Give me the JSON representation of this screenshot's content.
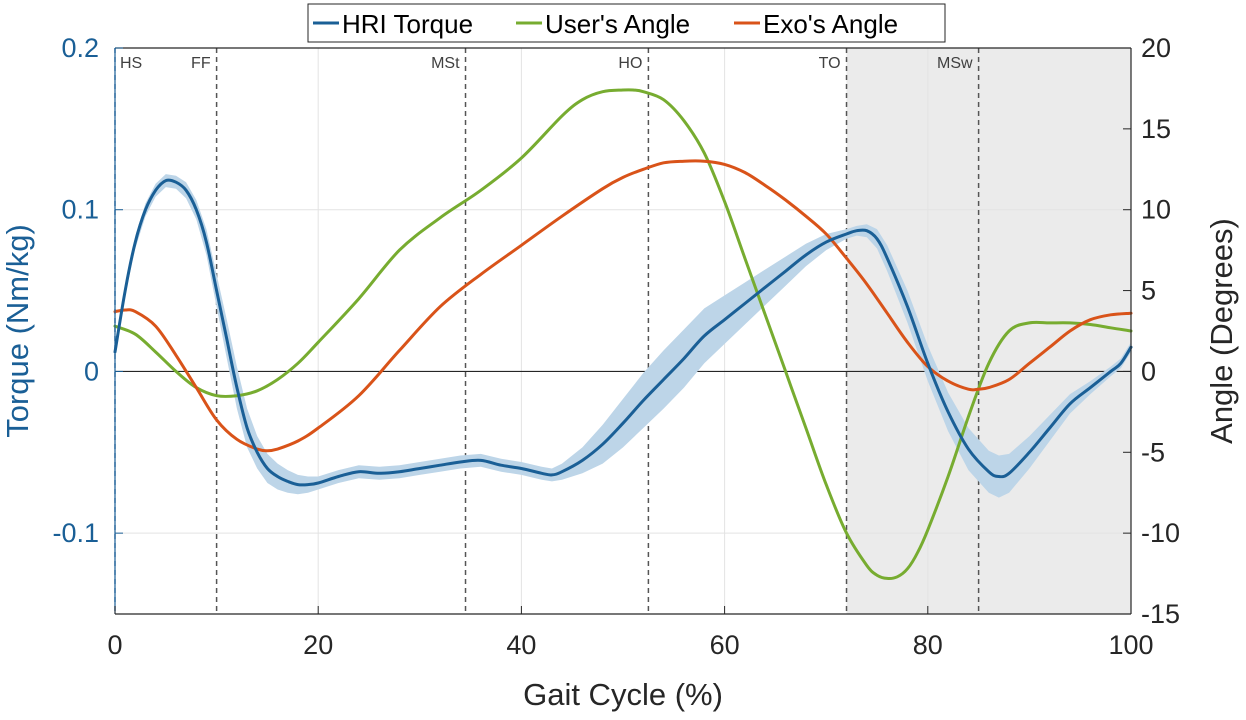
{
  "chart_data": {
    "type": "line",
    "xlabel": "Gait Cycle (%)",
    "ylabel_left": "Torque (Nm/kg)",
    "ylabel_right": "Angle (Degrees)",
    "xlim": [
      0,
      100
    ],
    "ylim_left": [
      -0.15,
      0.2
    ],
    "ylim_right": [
      -15,
      20
    ],
    "x_ticks": [
      0,
      20,
      40,
      60,
      80,
      100
    ],
    "y_ticks_left": [
      -0.1,
      0,
      0.1,
      0.2
    ],
    "y_ticks_left_labels": [
      "-0.1",
      "0",
      "0.1",
      "0.2"
    ],
    "y_ticks_right": [
      -15,
      -10,
      -5,
      0,
      5,
      10,
      15,
      20
    ],
    "grid": true,
    "legend_position": "top-center",
    "shaded_region": {
      "x": [
        72,
        100
      ],
      "color": "#ebebeb"
    },
    "phases": [
      {
        "label": "HS",
        "x": 0
      },
      {
        "label": "FF",
        "x": 10
      },
      {
        "label": "MSt",
        "x": 34.5
      },
      {
        "label": "HO",
        "x": 52.5
      },
      {
        "label": "TO",
        "x": 72
      },
      {
        "label": "MSw",
        "x": 85
      }
    ],
    "series": [
      {
        "name": "HRI Torque",
        "axis": "left",
        "color": "#1a5f96",
        "band_color": "#bdd5e8",
        "x": [
          0,
          1,
          2,
          3,
          4,
          5,
          6,
          7,
          8,
          9,
          10,
          11,
          12,
          13,
          14,
          15,
          16,
          17,
          18,
          19,
          20,
          22,
          24,
          26,
          28,
          30,
          32,
          34,
          36,
          38,
          40,
          42,
          43,
          44,
          46,
          48,
          50,
          52,
          54,
          56,
          58,
          60,
          62,
          64,
          66,
          68,
          70,
          72,
          73,
          74,
          75,
          76,
          78,
          80,
          82,
          84,
          86,
          87,
          88,
          90,
          92,
          94,
          96,
          98,
          99,
          100
        ],
        "y": [
          0.012,
          0.05,
          0.08,
          0.1,
          0.112,
          0.118,
          0.117,
          0.112,
          0.1,
          0.08,
          0.05,
          0.02,
          -0.01,
          -0.035,
          -0.05,
          -0.06,
          -0.065,
          -0.068,
          -0.07,
          -0.07,
          -0.069,
          -0.065,
          -0.062,
          -0.063,
          -0.062,
          -0.06,
          -0.058,
          -0.056,
          -0.055,
          -0.058,
          -0.06,
          -0.063,
          -0.064,
          -0.062,
          -0.055,
          -0.045,
          -0.032,
          -0.018,
          -0.005,
          0.008,
          0.022,
          0.032,
          0.042,
          0.052,
          0.062,
          0.072,
          0.08,
          0.085,
          0.087,
          0.087,
          0.082,
          0.07,
          0.04,
          0.005,
          -0.025,
          -0.048,
          -0.062,
          -0.065,
          -0.063,
          -0.05,
          -0.035,
          -0.02,
          -0.01,
          0.0,
          0.005,
          0.015
        ],
        "band": [
          0.002,
          0.003,
          0.004,
          0.004,
          0.004,
          0.004,
          0.004,
          0.005,
          0.006,
          0.008,
          0.01,
          0.012,
          0.013,
          0.012,
          0.01,
          0.009,
          0.008,
          0.007,
          0.006,
          0.005,
          0.004,
          0.004,
          0.004,
          0.004,
          0.004,
          0.004,
          0.004,
          0.004,
          0.004,
          0.004,
          0.004,
          0.004,
          0.004,
          0.005,
          0.008,
          0.012,
          0.015,
          0.017,
          0.018,
          0.018,
          0.017,
          0.015,
          0.013,
          0.011,
          0.009,
          0.007,
          0.005,
          0.003,
          0.003,
          0.004,
          0.006,
          0.008,
          0.01,
          0.011,
          0.012,
          0.013,
          0.013,
          0.013,
          0.012,
          0.01,
          0.008,
          0.006,
          0.004,
          0.003,
          0.003,
          0.003
        ]
      },
      {
        "name": "User's Angle",
        "axis": "right",
        "color": "#77ac30",
        "x": [
          0,
          2,
          4,
          6,
          8,
          10,
          12,
          14,
          16,
          18,
          20,
          24,
          28,
          32,
          36,
          40,
          44,
          46,
          48,
          50,
          51,
          52,
          54,
          56,
          58,
          60,
          62,
          64,
          66,
          68,
          70,
          72,
          74,
          75,
          76,
          77,
          78,
          79,
          80,
          82,
          84,
          86,
          88,
          90,
          92,
          94,
          96,
          98,
          100
        ],
        "y": [
          2.8,
          2.3,
          1.2,
          0,
          -1.0,
          -1.5,
          -1.5,
          -1.2,
          -0.5,
          0.5,
          1.8,
          4.5,
          7.5,
          9.5,
          11.2,
          13.2,
          15.8,
          16.8,
          17.3,
          17.4,
          17.4,
          17.3,
          16.8,
          15.5,
          13.5,
          10.5,
          7.0,
          3.5,
          0,
          -3.5,
          -7.0,
          -10.0,
          -12.0,
          -12.6,
          -12.8,
          -12.7,
          -12.2,
          -11.2,
          -9.8,
          -6.5,
          -2.8,
          0.5,
          2.5,
          3.0,
          3.0,
          3.0,
          2.9,
          2.7,
          2.5
        ]
      },
      {
        "name": "Exo's Angle",
        "axis": "right",
        "color": "#d95319",
        "x": [
          0,
          1,
          2,
          4,
          6,
          8,
          10,
          12,
          14,
          15,
          16,
          18,
          20,
          24,
          28,
          32,
          36,
          40,
          44,
          48,
          50,
          52,
          54,
          56,
          58,
          60,
          62,
          64,
          66,
          68,
          70,
          72,
          74,
          76,
          78,
          80,
          82,
          84,
          85,
          86,
          88,
          90,
          92,
          94,
          96,
          98,
          100
        ],
        "y": [
          3.7,
          3.8,
          3.7,
          2.8,
          1.0,
          -1.0,
          -3.0,
          -4.2,
          -4.8,
          -4.9,
          -4.8,
          -4.3,
          -3.5,
          -1.5,
          1.3,
          4.0,
          6.0,
          7.8,
          9.6,
          11.3,
          12.0,
          12.5,
          12.9,
          13.0,
          13.0,
          12.8,
          12.3,
          11.5,
          10.6,
          9.6,
          8.5,
          7.0,
          5.4,
          3.6,
          1.8,
          0.3,
          -0.6,
          -1.1,
          -1.1,
          -1.0,
          -0.5,
          0.5,
          1.5,
          2.5,
          3.2,
          3.5,
          3.6
        ]
      }
    ]
  }
}
